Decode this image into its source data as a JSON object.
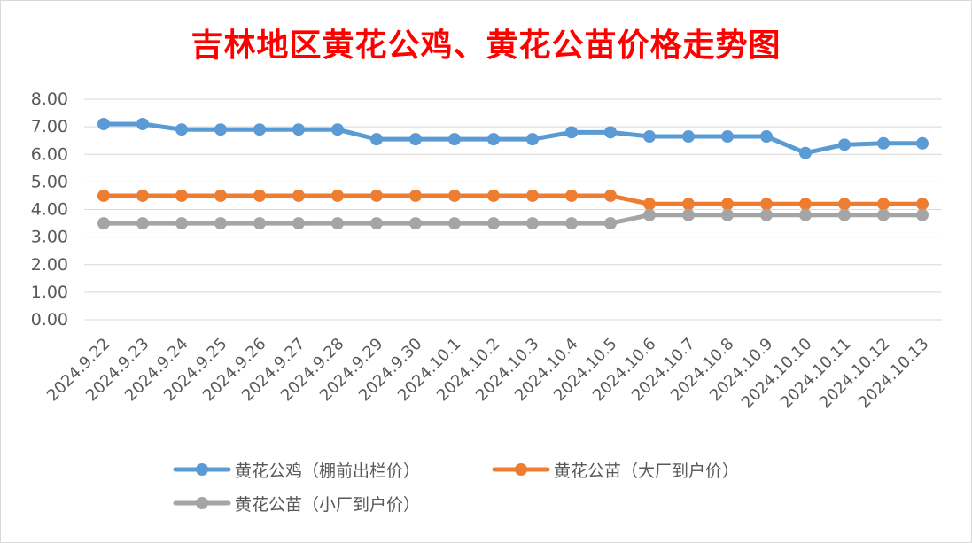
{
  "chart_data": {
    "type": "line",
    "title": "吉林地区黄花公鸡、黄花公苗价格走势图",
    "xlabel": "",
    "ylabel": "",
    "ylim": [
      0,
      8
    ],
    "yticks": [
      "0.00",
      "1.00",
      "2.00",
      "3.00",
      "4.00",
      "5.00",
      "6.00",
      "7.00",
      "8.00"
    ],
    "grid": true,
    "legend_position": "bottom",
    "categories": [
      "2024.9.22",
      "2024.9.23",
      "2024.9.24",
      "2024.9.25",
      "2024.9.26",
      "2024.9.27",
      "2024.9.28",
      "2024.9.29",
      "2024.9.30",
      "2024.10.1",
      "2024.10.2",
      "2024.10.3",
      "2024.10.4",
      "2024.10.5",
      "2024.10.6",
      "2024.10.7",
      "2024.10.8",
      "2024.10.9",
      "2024.10.10",
      "2024.10.11",
      "2024.10.12",
      "2024.10.13"
    ],
    "series": [
      {
        "name": "黄花公鸡（棚前出栏价）",
        "color": "#5b9bd5",
        "values": [
          7.1,
          7.1,
          6.9,
          6.9,
          6.9,
          6.9,
          6.9,
          6.55,
          6.55,
          6.55,
          6.55,
          6.55,
          6.8,
          6.8,
          6.65,
          6.65,
          6.65,
          6.65,
          6.05,
          6.35,
          6.4,
          6.4
        ]
      },
      {
        "name": "黄花公苗（大厂到户价）",
        "color": "#ed7d31",
        "values": [
          4.5,
          4.5,
          4.5,
          4.5,
          4.5,
          4.5,
          4.5,
          4.5,
          4.5,
          4.5,
          4.5,
          4.5,
          4.5,
          4.5,
          4.2,
          4.2,
          4.2,
          4.2,
          4.2,
          4.2,
          4.2,
          4.2
        ]
      },
      {
        "name": "黄花公苗（小厂到户价）",
        "color": "#a5a5a5",
        "values": [
          3.5,
          3.5,
          3.5,
          3.5,
          3.5,
          3.5,
          3.5,
          3.5,
          3.5,
          3.5,
          3.5,
          3.5,
          3.5,
          3.5,
          3.8,
          3.8,
          3.8,
          3.8,
          3.8,
          3.8,
          3.8,
          3.8
        ]
      }
    ]
  }
}
